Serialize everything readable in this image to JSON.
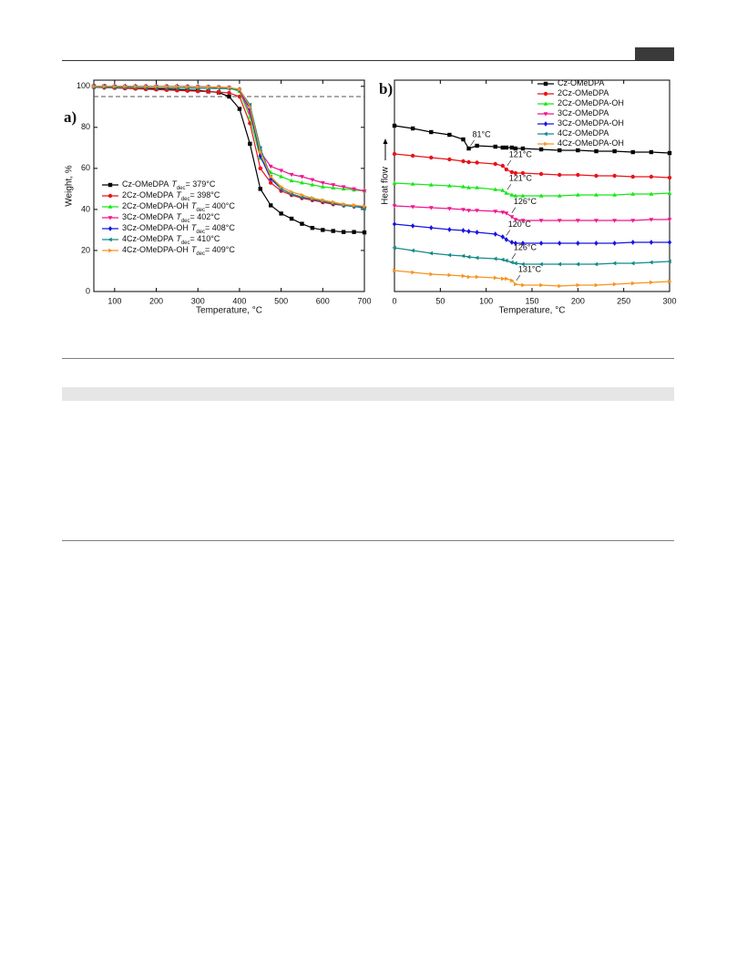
{
  "chart_data": [
    {
      "type": "line",
      "panel_label": "a)",
      "x_label": "Temperature, °C",
      "y_label": "Weight, %",
      "xlim": [
        50,
        700
      ],
      "xticks": [
        100,
        200,
        300,
        400,
        500,
        600,
        700
      ],
      "ylim": [
        0,
        103
      ],
      "yticks": [
        0,
        20,
        40,
        60,
        80,
        100
      ],
      "reference_line": 95,
      "legend": "lower-left",
      "x": [
        50,
        75,
        100,
        125,
        150,
        175,
        200,
        225,
        250,
        275,
        300,
        325,
        350,
        375,
        400,
        425,
        450,
        475,
        500,
        525,
        550,
        575,
        600,
        625,
        650,
        675,
        700
      ],
      "series": [
        {
          "name": "Cz-OMeDPA",
          "t_symbol": "T",
          "t_sub": "dec",
          "t_text": "= 379°C",
          "color": "#000000",
          "marker": "square",
          "values": [
            100,
            100,
            99.6,
            99.4,
            99.2,
            99,
            98.8,
            98.6,
            98.4,
            98.2,
            98,
            97.5,
            97,
            95,
            89,
            72,
            50,
            42,
            38,
            35.5,
            33,
            31,
            30,
            29.5,
            29,
            29,
            28.8
          ]
        },
        {
          "name": "2Cz-OMeDPA",
          "t_symbol": "T",
          "t_sub": "dec",
          "t_text": "= 398°C",
          "color": "#e8131a",
          "marker": "circle",
          "values": [
            99.5,
            99.3,
            99.2,
            99,
            98.8,
            98.6,
            98.4,
            98.2,
            98,
            97.8,
            97.6,
            97.4,
            97.2,
            96.8,
            95,
            82,
            60,
            53,
            49,
            47,
            45.5,
            44.5,
            43.5,
            42.5,
            42,
            41.5,
            41
          ]
        },
        {
          "name": "2Cz-OMeDPA-OH",
          "t_symbol": "T",
          "t_sub": "dec",
          "t_text": "= 400°C",
          "color": "#17e817",
          "marker": "triangle-up",
          "values": [
            100,
            100,
            100,
            100,
            100,
            100,
            100,
            100,
            99.9,
            99.8,
            99.7,
            99.6,
            99.5,
            99.2,
            97.5,
            85,
            65,
            58,
            56,
            54,
            53,
            52,
            51,
            50.5,
            50,
            49.5,
            49
          ]
        },
        {
          "name": "3Cz-OMeDPA",
          "t_symbol": "T",
          "t_sub": "dec",
          "t_text": "= 402°C",
          "color": "#f0158f",
          "marker": "triangle-down",
          "values": [
            100,
            100,
            100,
            100,
            100,
            100,
            100,
            100,
            100,
            99.9,
            99.8,
            99.7,
            99.6,
            99.4,
            98,
            87,
            68,
            61,
            59,
            57,
            56,
            54.5,
            53,
            52,
            51,
            50,
            49
          ]
        },
        {
          "name": "3Cz-OMeDPA-OH",
          "t_symbol": "T",
          "t_sub": "dec",
          "t_text": "= 408°C",
          "color": "#1515e0",
          "marker": "diamond",
          "values": [
            100,
            100,
            100,
            100,
            100,
            100,
            100,
            100,
            100,
            99.9,
            99.8,
            99.7,
            99.5,
            99.3,
            98.5,
            89,
            66,
            55,
            50,
            47.5,
            46,
            45,
            44,
            43,
            42,
            41.5,
            41
          ]
        },
        {
          "name": "4Cz-OMeDPA",
          "t_symbol": "T",
          "t_sub": "dec",
          "t_text": "= 410°C",
          "color": "#138a8a",
          "marker": "triangle-left",
          "values": [
            99.5,
            99.5,
            99.4,
            99.4,
            99.3,
            99.3,
            99.2,
            99.2,
            99.1,
            99.1,
            99,
            99,
            98.9,
            98.8,
            98.3,
            91,
            70,
            56,
            50,
            47.5,
            46,
            45,
            44,
            43,
            42,
            41.5,
            40.5
          ]
        },
        {
          "name": "4Cz-OMeDPA-OH",
          "t_symbol": "T",
          "t_sub": "dec",
          "t_text": "= 409°C",
          "color": "#f7931e",
          "marker": "triangle-right",
          "values": [
            100,
            100,
            100,
            100,
            100,
            100,
            100,
            100,
            100,
            99.9,
            99.8,
            99.7,
            99.6,
            99.4,
            98.6,
            90,
            68,
            56,
            51,
            48.5,
            47,
            45.5,
            44.5,
            43.5,
            42.5,
            42,
            41.5
          ]
        }
      ]
    },
    {
      "type": "line",
      "panel_label": "b)",
      "x_label": "Temperature, °C",
      "y_label": "Heat flow",
      "xlim": [
        0,
        300
      ],
      "xticks": [
        0,
        50,
        100,
        150,
        200,
        250,
        300
      ],
      "ylim": [
        0,
        232
      ],
      "legend": "upper-right",
      "x": [
        0,
        20,
        40,
        60,
        75,
        81,
        90,
        110,
        118,
        122,
        128,
        132,
        140,
        160,
        180,
        200,
        220,
        240,
        260,
        280,
        300
      ],
      "series": [
        {
          "name": "Cz-OMeDPA",
          "color": "#000000",
          "marker": "square",
          "values": [
            182,
            179,
            175,
            172,
            167,
            157,
            160,
            159,
            158,
            158,
            158,
            157,
            157,
            156,
            155,
            155,
            154,
            154,
            153,
            153,
            152
          ]
        },
        {
          "name": "2Cz-OMeDPA",
          "color": "#e8131a",
          "marker": "circle",
          "values": [
            151,
            149,
            147,
            145,
            143,
            142,
            141.5,
            140,
            138,
            134,
            131,
            130,
            130,
            129,
            128,
            128,
            127,
            127,
            126,
            126,
            125
          ]
        },
        {
          "name": "2Cz-OMeDPA-OH",
          "color": "#17e817",
          "marker": "triangle-up",
          "values": [
            119,
            118,
            117,
            116,
            115,
            114,
            114,
            112,
            111,
            108,
            106,
            105,
            105,
            105,
            105,
            106,
            106,
            106,
            107,
            107,
            108
          ]
        },
        {
          "name": "3Cz-OMeDPA",
          "color": "#f0158f",
          "marker": "triangle-down",
          "values": [
            94,
            93,
            92,
            91,
            90,
            89,
            89,
            88,
            87,
            86,
            82,
            79,
            78,
            78,
            78,
            78,
            78,
            78,
            78,
            79,
            79
          ]
        },
        {
          "name": "3Cz-OMeDPA-OH",
          "color": "#1515e0",
          "marker": "diamond",
          "values": [
            74,
            72,
            70,
            68,
            67,
            66,
            65,
            63,
            60,
            57,
            54,
            53,
            53,
            53,
            53,
            53,
            53,
            53,
            54,
            54,
            54
          ]
        },
        {
          "name": "4Cz-OMeDPA",
          "color": "#138a8a",
          "marker": "triangle-left",
          "values": [
            48,
            45,
            42,
            40,
            39,
            38,
            37,
            36,
            35,
            34,
            32,
            31,
            30,
            30,
            30,
            30,
            30,
            31,
            31,
            32,
            33
          ]
        },
        {
          "name": "4Cz-OMeDPA-OH",
          "color": "#f7931e",
          "marker": "triangle-right",
          "values": [
            23,
            21,
            19,
            18,
            17,
            16,
            16,
            15,
            14,
            14,
            12,
            8,
            7,
            7,
            6,
            7,
            7,
            8,
            9,
            10,
            11
          ]
        }
      ],
      "annotations": [
        {
          "text": "81°C",
          "x": 81,
          "series": 0
        },
        {
          "text": "121°C",
          "x": 121,
          "series": 1
        },
        {
          "text": "121°C",
          "x": 121,
          "series": 2
        },
        {
          "text": "126°C",
          "x": 126,
          "series": 3
        },
        {
          "text": "120°C",
          "x": 120,
          "series": 4
        },
        {
          "text": "126°C",
          "x": 126,
          "series": 5
        },
        {
          "text": "131°C",
          "x": 131,
          "series": 6
        }
      ]
    }
  ]
}
